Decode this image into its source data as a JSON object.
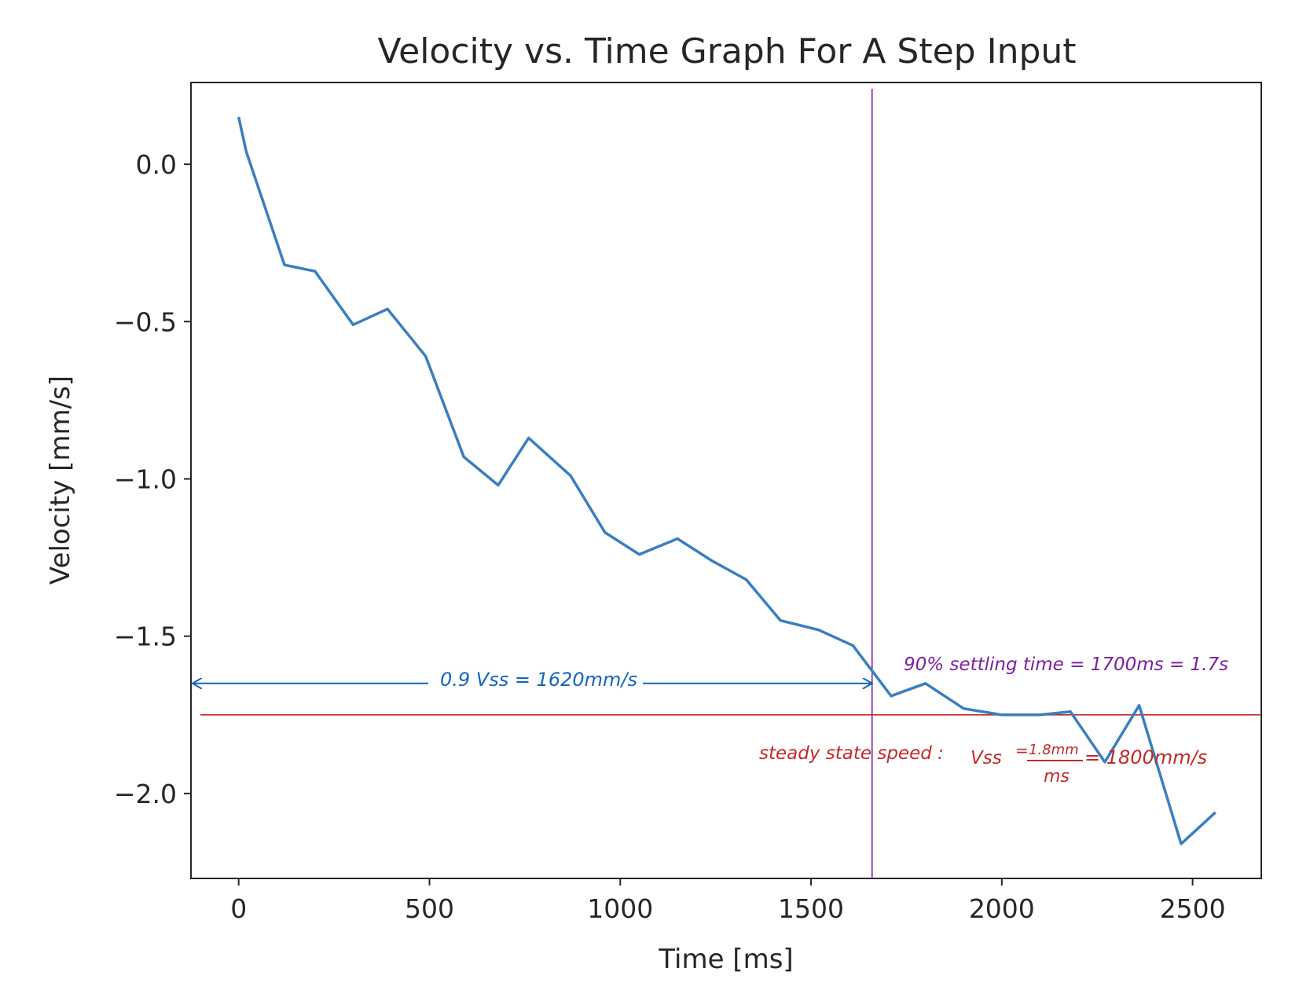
{
  "chart_data": {
    "type": "line",
    "title": "Velocity vs. Time Graph For A Step Input",
    "xlabel": "Time [ms]",
    "ylabel": "Velocity [mm/s]",
    "xlim": [
      -125,
      2680
    ],
    "ylim": [
      -2.27,
      0.26
    ],
    "xticks": [
      0,
      500,
      1000,
      1500,
      2000,
      2500
    ],
    "yticks": [
      0.0,
      -0.5,
      -1.0,
      -1.5,
      -2.0
    ],
    "xtick_labels": [
      "0",
      "500",
      "1000",
      "1500",
      "2000",
      "2500"
    ],
    "ytick_labels": [
      "0.0",
      "−0.5",
      "−1.0",
      "−1.5",
      "−2.0"
    ],
    "grid": false,
    "line_color": "#3a7ebf",
    "series": [
      {
        "x": [
          0,
          20,
          120,
          200,
          300,
          390,
          490,
          590,
          680,
          760,
          870,
          960,
          1050,
          1150,
          1240,
          1330,
          1420,
          1520,
          1610,
          1660,
          1710,
          1800,
          1900,
          2000,
          2100,
          2180,
          2270,
          2360,
          2470,
          2560
        ],
        "values": [
          0.15,
          0.04,
          -0.32,
          -0.34,
          -0.51,
          -0.46,
          -0.61,
          -0.93,
          -1.02,
          -0.87,
          -0.99,
          -1.17,
          -1.24,
          -1.19,
          -1.26,
          -1.32,
          -1.45,
          -1.48,
          -1.53,
          -1.61,
          -1.69,
          -1.65,
          -1.73,
          -1.75,
          -1.75,
          -1.74,
          -1.9,
          -1.72,
          -2.16,
          -2.06
        ]
      }
    ],
    "annotations": {
      "settling_line": {
        "x": 1660,
        "color": "#7b1fa2"
      },
      "steady_state_line": {
        "y": -1.75,
        "color": "#c62828"
      },
      "settling_arrow": {
        "x_start": -125,
        "x_end": 1660,
        "y": -1.65,
        "color": "#1565c0"
      },
      "settling_arrow_text": "0.9 Vss = 1620mm/s",
      "settling_time_text": "90% settling time = 1700ms = 1.7s",
      "steady_state_text_prefix": "steady state speed :",
      "steady_state_text_vss": "Vss",
      "steady_state_text_eq": "=",
      "steady_state_fraction_num": "1.8mm",
      "steady_state_fraction_den": "ms",
      "steady_state_text_result": "= 1800mm/s"
    }
  }
}
